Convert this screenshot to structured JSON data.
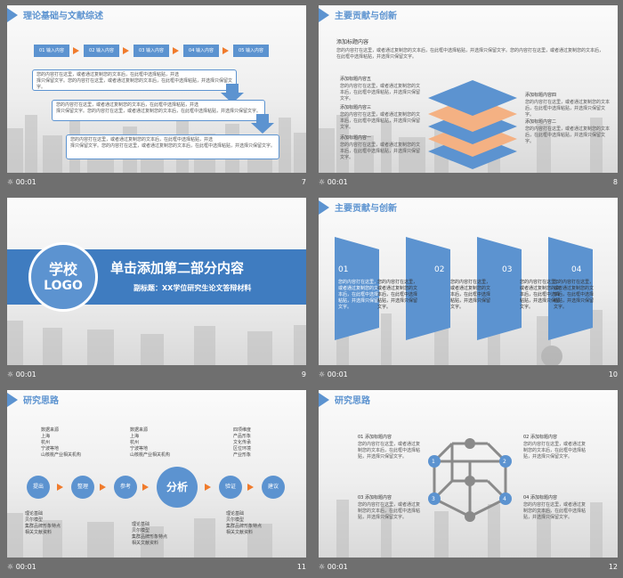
{
  "body_text": "您的内容打在这里，或者通过复制您的文本后，在此框中选择粘贴，并选择只保留文字。",
  "slides": [
    {
      "number": "7",
      "time": "00:01",
      "title": "理论基础与文献综述",
      "steps": [
        "01 输入内容",
        "02 输入内容",
        "03 输入内容",
        "04 输入内容",
        "05 输入内容"
      ],
      "text_lines": [
        "您的内容打在这里，或者通过复制您的文本后，在此框中选择粘贴，并选",
        "择只保留文字。您的内容打在这里，或者通过复制您的文本后，在此框中选择粘贴，并选择只保留文字。"
      ]
    },
    {
      "number": "8",
      "time": "00:01",
      "title": "主要贡献与创新",
      "heading": "添加标题内容",
      "para": "您的内容打在这里，或者通过复制您的文本后，在此框中选择粘贴，并选择只保留文字。您的内容打在这里，或者通过复制您的文本后，在此框中选择粘贴，并选择只保留文字。",
      "left_labels": [
        "添加标题内容五",
        "添加标题内容三",
        "添加标题内容一"
      ],
      "right_labels": [
        "添加标题内容四",
        "添加标题内容二"
      ]
    },
    {
      "number": "9",
      "time": "00:01",
      "logo_line1": "学校",
      "logo_line2": "LOGO",
      "main_title": "单击添加第二部分内容",
      "subtitle": "副标题：XX学位研究生论文答辩材料"
    },
    {
      "number": "10",
      "time": "00:01",
      "title": "主要贡献与创新",
      "items": [
        "01",
        "02",
        "03",
        "04"
      ]
    },
    {
      "number": "11",
      "time": "00:01",
      "title": "研究思路",
      "top1": [
        "数据来源",
        "上海",
        "杭州",
        "宁波等地",
        "山核桃产业相关机构"
      ],
      "top2": [
        "数据来源",
        "上海",
        "杭州",
        "宁波等地",
        "山核桃产业相关机构"
      ],
      "top3": [
        "四项维度",
        "产品形象",
        "文化传承",
        "区位环境",
        "产业形象"
      ],
      "bot1": [
        "理论基础",
        "贝尔模型",
        "集群品牌形象特点",
        "相关文献资料"
      ],
      "bot2": [
        "理论基础",
        "贝尔模型",
        "集群品牌形象特点",
        "相关文献资料"
      ],
      "bot3": [
        "理论基础",
        "贝尔模型",
        "集群品牌形象特点",
        "相关文献资料"
      ],
      "nodes": [
        "提出",
        "整理",
        "参考",
        "分析",
        "验证",
        "建议"
      ]
    },
    {
      "number": "12",
      "time": "00:01",
      "title": "研究思路",
      "items": [
        "01  添加标题内容",
        "02  添加标题内容",
        "03  添加标题内容",
        "04  添加标题内容"
      ],
      "nums": [
        "1",
        "2",
        "3",
        "4"
      ]
    }
  ],
  "colors": {
    "accent": "#5c93d0",
    "orange": "#f07b2c",
    "peach": "#f4b183"
  }
}
